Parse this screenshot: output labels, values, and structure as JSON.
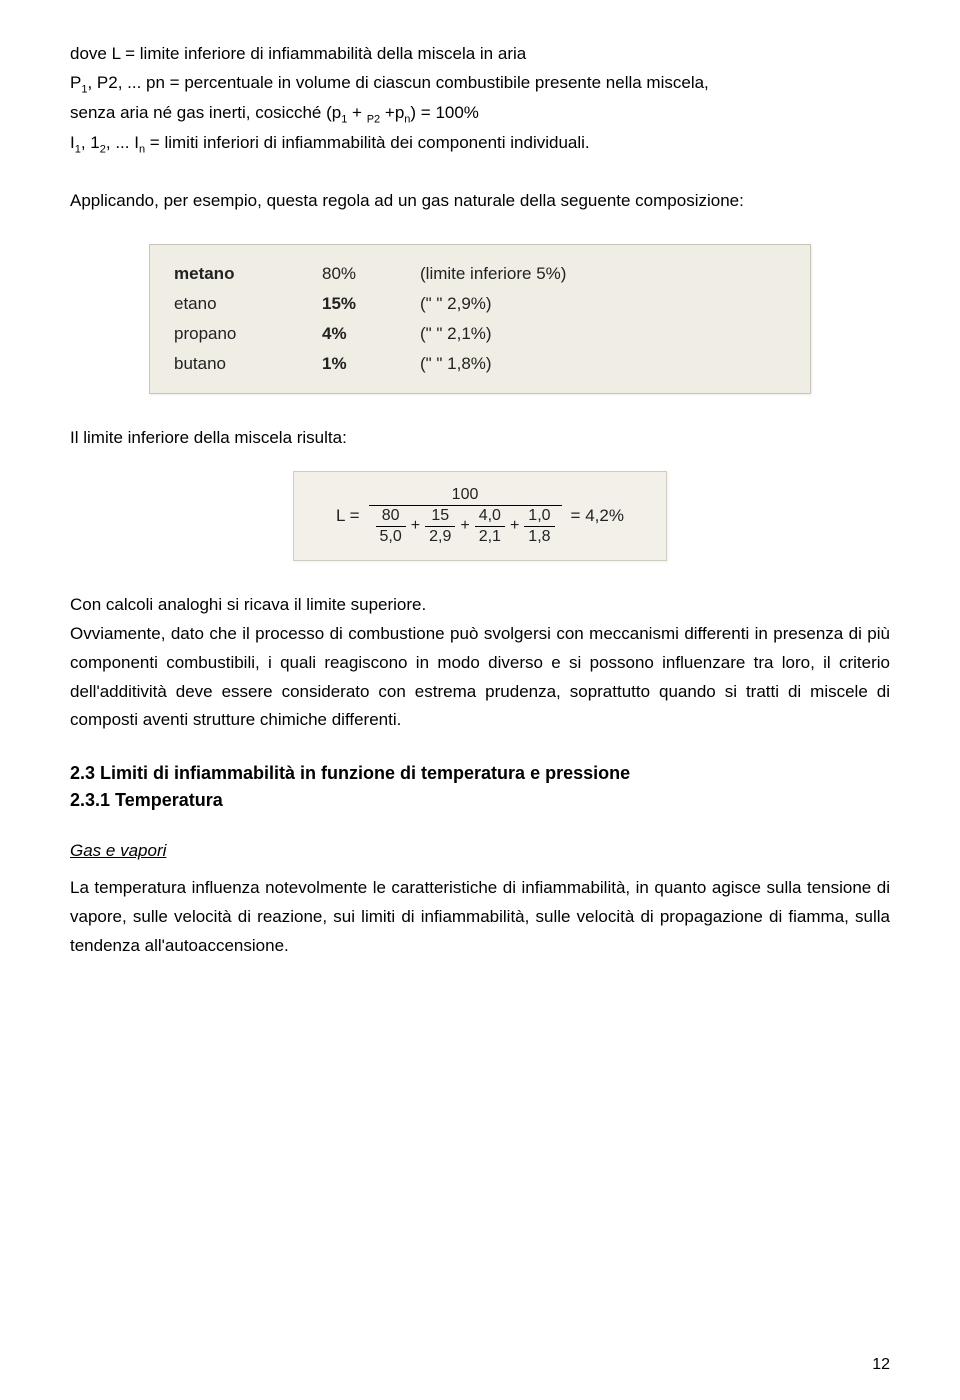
{
  "text": {
    "line1": "dove L = limite inferiore di infiammabilità della miscela in aria",
    "line2_pre": "P",
    "line2_s1": "1",
    "line2_mid1": ", P2, ... pn = percentuale in volume di ciascun combustibile presente nella miscela,",
    "line3_pre": "senza aria né gas inerti, cosicché (p",
    "line3_s1": "1",
    "line3_mid": " + ",
    "line3_s2": "P2",
    "line3_mid2": " +p",
    "line3_s3": "n",
    "line3_end": ") = 100%",
    "line4_pre": "I",
    "line4_s1": "1",
    "line4_mid1": ", 1",
    "line4_s2": "2",
    "line4_mid2": ", ... I",
    "line4_s3": "n",
    "line4_end": " = limiti inferiori di infiammabilità dei componenti individuali.",
    "applying": "Applicando, per esempio, questa regola ad un gas naturale della seguente composizione:",
    "result_line": "Il limite inferiore della miscela risulta:",
    "analog": "Con calcoli analoghi si ricava il limite superiore.",
    "para_long": "Ovviamente, dato che il processo di combustione può svolgersi con meccanismi differenti in presenza di più componenti combustibili, i quali reagiscono in modo diverso e si possono influenzare tra loro, il criterio dell'additività deve essere considerato con estrema prudenza, soprattutto quando si tratti di miscele di composti aventi strutture chimiche differenti.",
    "section_23": "2.3 Limiti di infiammabilità in funzione di temperatura e pressione",
    "section_231": "2.3.1 Temperatura",
    "gas_vapori": "Gas e vapori",
    "temp_para": "La temperatura influenza notevolmente le caratteristiche di infiammabilità, in quanto agisce sulla tensione di vapore, sulle velocità di reazione, sui limiti di infiammabilità, sulle velocità di propagazione di fiamma, sulla tendenza all'autoaccensione.",
    "page_num": "12"
  },
  "composition": {
    "rows": [
      {
        "name": "metano",
        "pct": "80%",
        "limit_label": "(limite inferiore 5%)",
        "bold_pct": false
      },
      {
        "name": "etano",
        "pct": "15%",
        "limit_label": "(\"      \"          2,9%)",
        "bold_pct": true
      },
      {
        "name": "propano",
        "pct": "4%",
        "limit_label": "(\"      \"          2,1%)",
        "bold_pct": true
      },
      {
        "name": "butano",
        "pct": "1%",
        "limit_label": "(\"      \"          1,8%)",
        "bold_pct": true
      }
    ]
  },
  "formula": {
    "L_eq": "L =",
    "numerator": "100",
    "terms": [
      {
        "num": "80",
        "den": "5,0"
      },
      {
        "num": "15",
        "den": "2,9"
      },
      {
        "num": "4,0",
        "den": "2,1"
      },
      {
        "num": "1,0",
        "den": "1,8"
      }
    ],
    "result": "= 4,2%"
  },
  "colors": {
    "text": "#000000",
    "box_bg": "#f0ede5",
    "box_border": "#c8c4b8"
  }
}
